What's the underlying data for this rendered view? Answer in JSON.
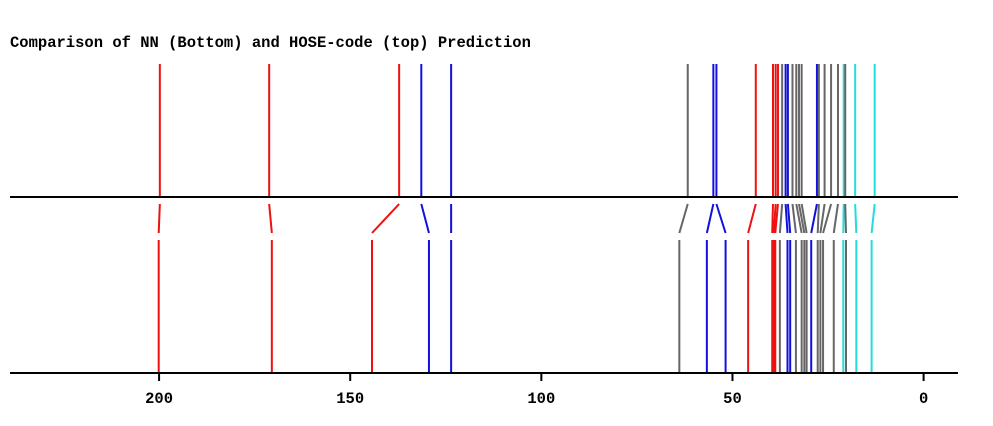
{
  "chart_data": {
    "type": "stick-spectrum-comparison",
    "title": "Comparison of NN (Bottom) and HOSE-code (top) Prediction",
    "x_axis": {
      "reversed": true,
      "range": [
        239,
        -9
      ],
      "ticks": [
        200,
        150,
        100,
        50,
        0
      ],
      "tick_labels": [
        "200",
        "150",
        "100",
        "50",
        "0"
      ]
    },
    "colors": {
      "red": "#ee1111",
      "blue": "#1111dd",
      "gray": "#666666",
      "cyan": "#22dddd",
      "axis": "#000000"
    },
    "peaks": [
      {
        "hose": 199.8,
        "nn": 200.1,
        "color": "red"
      },
      {
        "hose": 171.2,
        "nn": 170.5,
        "color": "red"
      },
      {
        "hose": 137.2,
        "nn": 144.3,
        "color": "red"
      },
      {
        "hose": 131.4,
        "nn": 129.4,
        "color": "blue"
      },
      {
        "hose": 123.6,
        "nn": 123.6,
        "color": "blue"
      },
      {
        "hose": 61.7,
        "nn": 63.9,
        "color": "gray"
      },
      {
        "hose": 55.0,
        "nn": 56.7,
        "color": "blue"
      },
      {
        "hose": 54.2,
        "nn": 51.8,
        "color": "blue"
      },
      {
        "hose": 43.9,
        "nn": 45.9,
        "color": "red"
      },
      {
        "hose": 39.4,
        "nn": 39.6,
        "color": "red"
      },
      {
        "hose": 38.7,
        "nn": 39.2,
        "color": "red"
      },
      {
        "hose": 38.1,
        "nn": 38.8,
        "color": "red"
      },
      {
        "hose": 37.0,
        "nn": 37.6,
        "color": "gray"
      },
      {
        "hose": 36.1,
        "nn": 35.6,
        "color": "blue"
      },
      {
        "hose": 35.5,
        "nn": 34.9,
        "color": "blue"
      },
      {
        "hose": 34.3,
        "nn": 33.4,
        "color": "gray"
      },
      {
        "hose": 33.3,
        "nn": 31.9,
        "color": "gray"
      },
      {
        "hose": 32.6,
        "nn": 31.2,
        "color": "gray"
      },
      {
        "hose": 31.9,
        "nn": 30.6,
        "color": "gray"
      },
      {
        "hose": 27.9,
        "nn": 29.4,
        "color": "blue"
      },
      {
        "hose": 27.4,
        "nn": 27.7,
        "color": "gray"
      },
      {
        "hose": 25.9,
        "nn": 27.0,
        "color": "gray"
      },
      {
        "hose": 24.2,
        "nn": 26.3,
        "color": "gray"
      },
      {
        "hose": 22.4,
        "nn": 23.5,
        "color": "gray"
      },
      {
        "hose": 20.9,
        "nn": 21.0,
        "color": "cyan"
      },
      {
        "hose": 20.5,
        "nn": 20.3,
        "color": "gray"
      },
      {
        "hose": 17.9,
        "nn": 17.6,
        "color": "cyan"
      },
      {
        "hose": 12.8,
        "nn": 13.6,
        "color": "cyan"
      }
    ]
  }
}
